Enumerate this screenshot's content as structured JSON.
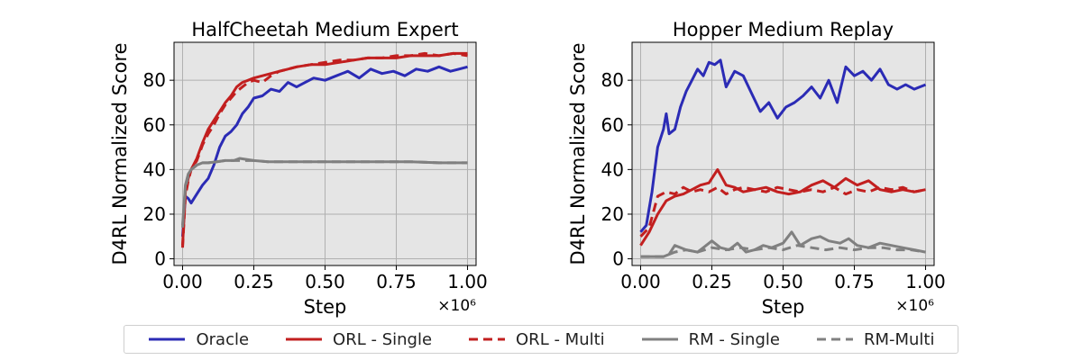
{
  "chart_data": [
    {
      "type": "line",
      "title": "HalfCheetah Medium Expert",
      "xlabel": "Step",
      "ylabel": "D4RL Normalized Score",
      "x_scale_label": "×10⁶",
      "xlim": [
        -0.03,
        1.03
      ],
      "ylim": [
        -3,
        97
      ],
      "xticks": [
        0.0,
        0.25,
        0.5,
        0.75,
        1.0
      ],
      "xtick_labels": [
        "0.00",
        "0.25",
        "0.50",
        "0.75",
        "1.00"
      ],
      "yticks": [
        0,
        20,
        40,
        60,
        80
      ],
      "ytick_labels": [
        "0",
        "20",
        "40",
        "60",
        "80"
      ],
      "grid": true,
      "series": [
        {
          "name": "Oracle",
          "color": "#2b2bb5",
          "dash": "solid",
          "x": [
            0.0,
            0.01,
            0.02,
            0.03,
            0.05,
            0.07,
            0.09,
            0.11,
            0.13,
            0.15,
            0.17,
            0.19,
            0.21,
            0.23,
            0.25,
            0.28,
            0.31,
            0.34,
            0.37,
            0.4,
            0.43,
            0.46,
            0.5,
            0.54,
            0.58,
            0.62,
            0.66,
            0.7,
            0.74,
            0.78,
            0.82,
            0.86,
            0.9,
            0.94,
            0.97,
            1.0
          ],
          "y": [
            10,
            28,
            27,
            25,
            29,
            33,
            36,
            42,
            50,
            55,
            57,
            60,
            65,
            68,
            72,
            73,
            76,
            75,
            79,
            77,
            79,
            81,
            80,
            82,
            84,
            81,
            85,
            83,
            84,
            82,
            85,
            84,
            86,
            84,
            85,
            86
          ]
        },
        {
          "name": "ORL - Single",
          "color": "#c21f1f",
          "dash": "solid",
          "x": [
            0.0,
            0.01,
            0.02,
            0.03,
            0.05,
            0.07,
            0.09,
            0.11,
            0.13,
            0.15,
            0.17,
            0.19,
            0.21,
            0.23,
            0.25,
            0.28,
            0.31,
            0.34,
            0.37,
            0.4,
            0.45,
            0.5,
            0.55,
            0.6,
            0.65,
            0.7,
            0.75,
            0.8,
            0.85,
            0.9,
            0.95,
            1.0
          ],
          "y": [
            6,
            30,
            36,
            40,
            45,
            52,
            58,
            62,
            66,
            70,
            73,
            77,
            79,
            80,
            81,
            82,
            83,
            84,
            85,
            86,
            87,
            87,
            88,
            89,
            90,
            90,
            90,
            91,
            91,
            91,
            92,
            92
          ]
        },
        {
          "name": "ORL - Multi",
          "color": "#c21f1f",
          "dash": "dashed",
          "x": [
            0.0,
            0.01,
            0.02,
            0.03,
            0.05,
            0.07,
            0.09,
            0.11,
            0.13,
            0.15,
            0.17,
            0.19,
            0.21,
            0.23,
            0.25,
            0.28,
            0.31,
            0.34,
            0.37,
            0.4,
            0.45,
            0.5,
            0.55,
            0.6,
            0.65,
            0.7,
            0.75,
            0.8,
            0.85,
            0.9,
            0.95,
            1.0
          ],
          "y": [
            5,
            28,
            35,
            40,
            44,
            51,
            56,
            60,
            65,
            69,
            72,
            75,
            77,
            79,
            80,
            79,
            82,
            84,
            85,
            86,
            87,
            88,
            89,
            89,
            90,
            90,
            91,
            91,
            92,
            91,
            92,
            91
          ]
        },
        {
          "name": "RM - Single",
          "color": "#808080",
          "dash": "solid",
          "x": [
            0.0,
            0.01,
            0.02,
            0.03,
            0.05,
            0.07,
            0.09,
            0.12,
            0.15,
            0.18,
            0.2,
            0.25,
            0.3,
            0.4,
            0.5,
            0.6,
            0.7,
            0.8,
            0.9,
            1.0
          ],
          "y": [
            15,
            33,
            38,
            40,
            42,
            43,
            43,
            43.5,
            44,
            44,
            45,
            44,
            43.5,
            43.5,
            43.5,
            43.5,
            43.5,
            43.5,
            43,
            43
          ]
        },
        {
          "name": "RM-Multi",
          "color": "#808080",
          "dash": "dashed",
          "x": [
            0.0,
            0.01,
            0.02,
            0.03,
            0.05,
            0.07,
            0.09,
            0.12,
            0.15,
            0.18,
            0.2,
            0.25,
            0.3,
            0.4,
            0.5,
            0.6,
            0.7,
            0.8,
            0.9,
            1.0
          ],
          "y": [
            14,
            32,
            37,
            40,
            42,
            43,
            43,
            43.5,
            44,
            44,
            44,
            44,
            43.5,
            43.5,
            43.5,
            43.5,
            43.5,
            43.5,
            43,
            43
          ]
        }
      ]
    },
    {
      "type": "line",
      "title": "Hopper Medium Replay",
      "xlabel": "Step",
      "ylabel": "D4RL Normalized Score",
      "x_scale_label": "×10⁶",
      "xlim": [
        -0.03,
        1.03
      ],
      "ylim": [
        -3,
        97
      ],
      "xticks": [
        0.0,
        0.25,
        0.5,
        0.75,
        1.0
      ],
      "xtick_labels": [
        "0.00",
        "0.25",
        "0.50",
        "0.75",
        "1.00"
      ],
      "yticks": [
        0,
        20,
        40,
        60,
        80
      ],
      "ytick_labels": [
        "0",
        "20",
        "40",
        "60",
        "80"
      ],
      "grid": true,
      "series": [
        {
          "name": "Oracle",
          "color": "#2b2bb5",
          "dash": "solid",
          "x": [
            0.0,
            0.02,
            0.04,
            0.06,
            0.08,
            0.09,
            0.1,
            0.12,
            0.14,
            0.16,
            0.18,
            0.2,
            0.22,
            0.24,
            0.26,
            0.28,
            0.3,
            0.33,
            0.36,
            0.39,
            0.42,
            0.45,
            0.48,
            0.51,
            0.54,
            0.57,
            0.6,
            0.63,
            0.66,
            0.69,
            0.72,
            0.75,
            0.78,
            0.81,
            0.84,
            0.87,
            0.9,
            0.93,
            0.96,
            1.0
          ],
          "y": [
            12,
            15,
            30,
            50,
            58,
            65,
            56,
            58,
            68,
            75,
            80,
            85,
            82,
            88,
            87,
            89,
            77,
            84,
            82,
            74,
            66,
            70,
            63,
            68,
            70,
            73,
            77,
            72,
            80,
            70,
            86,
            82,
            84,
            80,
            85,
            78,
            76,
            78,
            76,
            78
          ]
        },
        {
          "name": "ORL - Single",
          "color": "#c21f1f",
          "dash": "solid",
          "x": [
            0.0,
            0.03,
            0.06,
            0.09,
            0.12,
            0.15,
            0.18,
            0.21,
            0.24,
            0.27,
            0.3,
            0.33,
            0.36,
            0.4,
            0.44,
            0.48,
            0.52,
            0.56,
            0.6,
            0.64,
            0.68,
            0.72,
            0.76,
            0.8,
            0.84,
            0.88,
            0.92,
            0.96,
            1.0
          ],
          "y": [
            6,
            12,
            20,
            26,
            28,
            29,
            31,
            33,
            34,
            40,
            33,
            32,
            30,
            31,
            32,
            30,
            29,
            30,
            33,
            35,
            32,
            36,
            33,
            35,
            31,
            30,
            31,
            30,
            31
          ]
        },
        {
          "name": "ORL - Multi",
          "color": "#c21f1f",
          "dash": "dashed",
          "x": [
            0.0,
            0.03,
            0.06,
            0.09,
            0.12,
            0.15,
            0.18,
            0.21,
            0.24,
            0.27,
            0.3,
            0.33,
            0.36,
            0.4,
            0.44,
            0.48,
            0.52,
            0.56,
            0.6,
            0.64,
            0.68,
            0.72,
            0.76,
            0.8,
            0.84,
            0.88,
            0.92,
            0.96,
            1.0
          ],
          "y": [
            10,
            14,
            28,
            30,
            29,
            32,
            30,
            31,
            30,
            32,
            29,
            31,
            32,
            31,
            30,
            32,
            31,
            30,
            31,
            30,
            32,
            29,
            31,
            30,
            32,
            31,
            32,
            30,
            31
          ]
        },
        {
          "name": "RM - Single",
          "color": "#808080",
          "dash": "solid",
          "x": [
            0.0,
            0.04,
            0.08,
            0.1,
            0.12,
            0.16,
            0.2,
            0.22,
            0.25,
            0.28,
            0.31,
            0.34,
            0.37,
            0.4,
            0.43,
            0.46,
            0.5,
            0.53,
            0.56,
            0.6,
            0.63,
            0.66,
            0.7,
            0.73,
            0.76,
            0.8,
            0.84,
            0.88,
            0.92,
            0.96,
            1.0
          ],
          "y": [
            1,
            1,
            1,
            2,
            6,
            4,
            3,
            5,
            8,
            5,
            4,
            7,
            3,
            4,
            6,
            5,
            7,
            12,
            6,
            9,
            10,
            8,
            7,
            9,
            6,
            5,
            7,
            6,
            5,
            4,
            3
          ]
        },
        {
          "name": "RM-Multi",
          "color": "#808080",
          "dash": "dashed",
          "x": [
            0.0,
            0.04,
            0.08,
            0.12,
            0.16,
            0.2,
            0.25,
            0.3,
            0.35,
            0.4,
            0.45,
            0.5,
            0.55,
            0.6,
            0.65,
            0.7,
            0.75,
            0.8,
            0.85,
            0.9,
            0.95,
            1.0
          ],
          "y": [
            1,
            1,
            1,
            3,
            4,
            3,
            5,
            4,
            5,
            4,
            5,
            4,
            6,
            5,
            4,
            5,
            4,
            5,
            5,
            4,
            4,
            3
          ]
        }
      ]
    }
  ],
  "legend": {
    "items": [
      {
        "label": "Oracle",
        "color": "#2b2bb5",
        "dash": "solid"
      },
      {
        "label": "ORL - Single",
        "color": "#c21f1f",
        "dash": "solid"
      },
      {
        "label": "ORL - Multi",
        "color": "#c21f1f",
        "dash": "dashed"
      },
      {
        "label": "RM - Single",
        "color": "#808080",
        "dash": "solid"
      },
      {
        "label": "RM-Multi",
        "color": "#808080",
        "dash": "dashed"
      }
    ]
  }
}
